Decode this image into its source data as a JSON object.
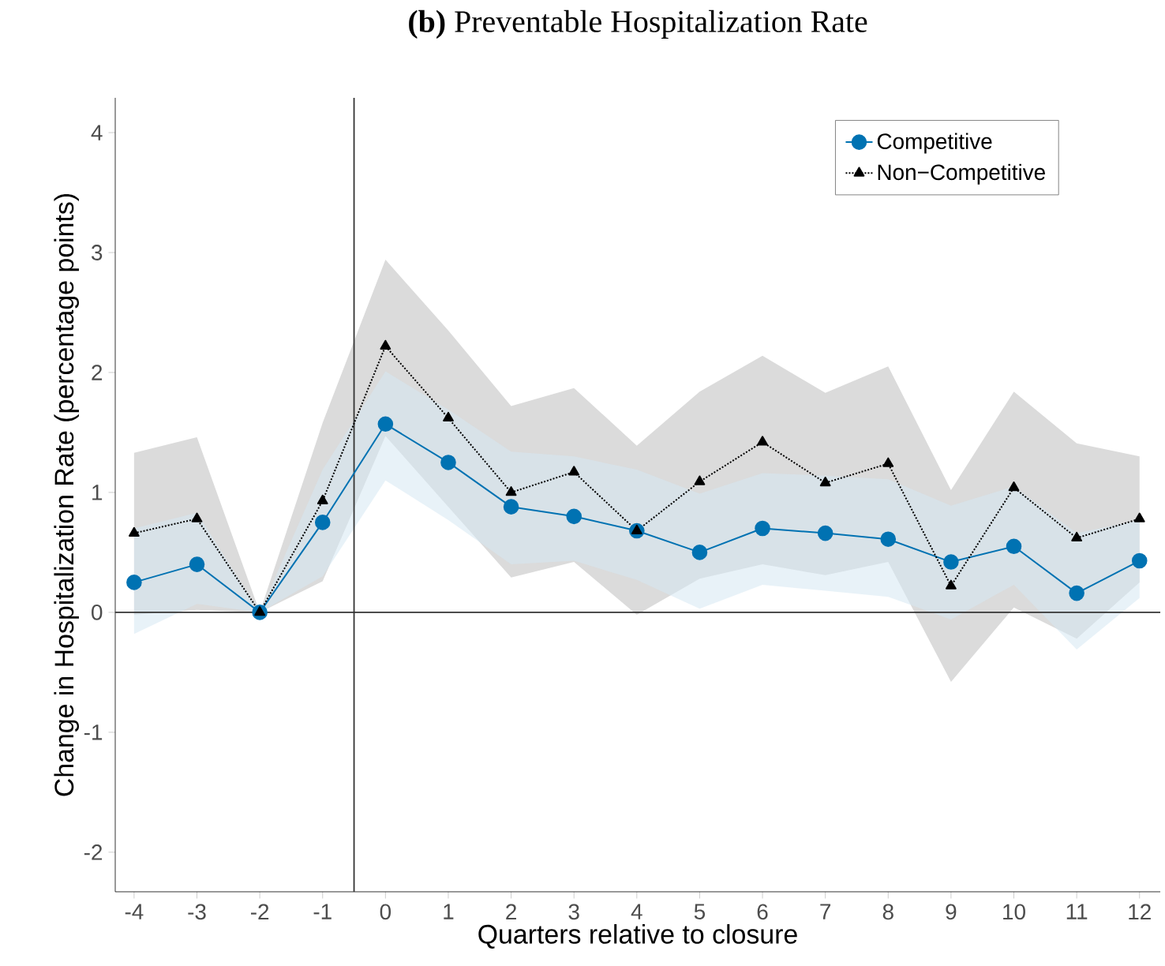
{
  "chart_data": {
    "type": "line",
    "title": "**(b)** Preventable Hospitalization Rate",
    "xlabel": "Quarters relative to closure",
    "ylabel": "Change in Hospitalization Rate (percentage points)",
    "x": [
      -4,
      -3,
      -2,
      -1,
      0,
      1,
      2,
      3,
      4,
      5,
      6,
      7,
      8,
      9,
      10,
      11,
      12
    ],
    "series": [
      {
        "name": "Competitive",
        "color": "#0072b2",
        "marker": "circle",
        "line_style": "solid",
        "values": [
          0.25,
          0.4,
          0,
          0.75,
          1.57,
          1.25,
          0.88,
          0.8,
          0.68,
          0.5,
          0.7,
          0.66,
          0.61,
          0.42,
          0.55,
          0.16,
          0.43
        ],
        "lower": [
          -0.18,
          0.07,
          0,
          0.3,
          1.1,
          0.77,
          0.4,
          0.43,
          0.27,
          0.03,
          0.23,
          0.18,
          0.13,
          -0.06,
          0.23,
          -0.31,
          0.12
        ],
        "upper": [
          0.7,
          0.83,
          0,
          1.19,
          2.01,
          1.69,
          1.34,
          1.3,
          1.19,
          0.99,
          1.16,
          1.14,
          1.11,
          0.89,
          1.05,
          0.66,
          0.77
        ]
      },
      {
        "name": "Non−Competitive",
        "color": "#000000",
        "marker": "triangle",
        "line_style": "dotted",
        "values": [
          0.66,
          0.78,
          0,
          0.93,
          2.22,
          1.62,
          1.0,
          1.17,
          0.68,
          1.09,
          1.42,
          1.08,
          1.24,
          0.22,
          1.04,
          0.62,
          0.78
        ],
        "lower": [
          -0.02,
          0.02,
          0,
          0.26,
          1.47,
          0.88,
          0.29,
          0.42,
          -0.02,
          0.28,
          0.4,
          0.31,
          0.42,
          -0.58,
          0.04,
          -0.22,
          0.25
        ],
        "upper": [
          1.33,
          1.46,
          0,
          1.58,
          2.94,
          2.35,
          1.72,
          1.87,
          1.39,
          1.84,
          2.14,
          1.83,
          2.05,
          1.02,
          1.84,
          1.41,
          1.3
        ]
      }
    ],
    "xlim": [
      -4.3,
      12.33
    ],
    "ylim": [
      -2.33,
      4.29
    ],
    "xticks": [
      -4,
      -3,
      -2,
      -1,
      0,
      1,
      2,
      3,
      4,
      5,
      6,
      7,
      8,
      9,
      10,
      11,
      12
    ],
    "yticks": [
      -2,
      -1,
      0,
      1,
      2,
      3,
      4
    ],
    "ref_lines": [
      {
        "axis": "x",
        "value": -0.5
      },
      {
        "axis": "y",
        "value": 0
      }
    ],
    "legend": "top right",
    "grid": false
  }
}
